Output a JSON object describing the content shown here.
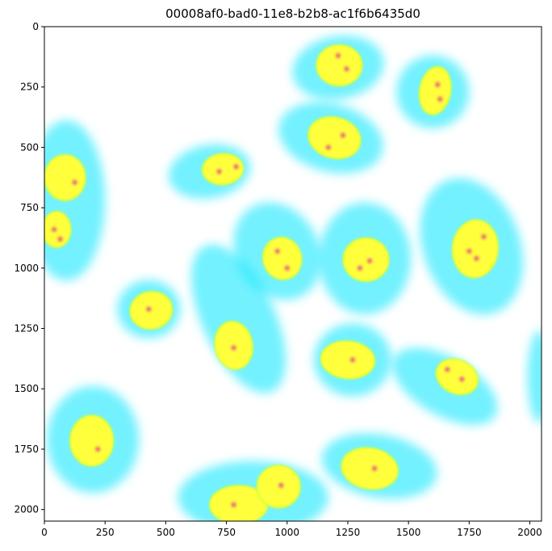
{
  "figure": {
    "title": "00008af0-bad0-11e8-b2b8-ac1f6b6435d0",
    "image_extent": {
      "x": [
        0,
        2048
      ],
      "y": [
        2048,
        0
      ]
    },
    "x_ticks": [
      "0",
      "250",
      "500",
      "750",
      "1000",
      "1250",
      "1500",
      "1750",
      "2000"
    ],
    "y_ticks": [
      "0",
      "250",
      "500",
      "750",
      "1000",
      "1250",
      "1500",
      "1750",
      "2000"
    ],
    "colors": {
      "background": "#ffffff",
      "cytoplasm": "#00e5ff",
      "nucleus": "#ffff3a",
      "nucleus_edge": "#b8ff40",
      "nucleolus": "#e0408a"
    },
    "cells": [
      {
        "cx": 1210,
        "cy": 170,
        "rx": 190,
        "ry": 130,
        "rot": -10,
        "nx": 1215,
        "ny": 160,
        "nrx": 95,
        "nry": 85,
        "nrot": 0
      },
      {
        "cx": 1600,
        "cy": 270,
        "rx": 150,
        "ry": 150,
        "rot": 20,
        "nx": 1610,
        "ny": 265,
        "nrx": 65,
        "nry": 100,
        "nrot": 10
      },
      {
        "cx": 1180,
        "cy": 460,
        "rx": 220,
        "ry": 140,
        "rot": 15,
        "nx": 1195,
        "ny": 460,
        "nrx": 110,
        "nry": 85,
        "nrot": 15
      },
      {
        "cx": 90,
        "cy": 720,
        "rx": 160,
        "ry": 330,
        "rot": 0,
        "nx": 85,
        "ny": 625,
        "nrx": 85,
        "nry": 95,
        "nrot": 0
      },
      {
        "cx": 90,
        "cy": 720,
        "rx": 1,
        "ry": 1,
        "rot": 0,
        "nx": 50,
        "ny": 840,
        "nrx": 60,
        "nry": 75,
        "nrot": 0
      },
      {
        "cx": 680,
        "cy": 600,
        "rx": 170,
        "ry": 110,
        "rot": -10,
        "nx": 735,
        "ny": 590,
        "nrx": 85,
        "nry": 65,
        "nrot": -5
      },
      {
        "cx": 960,
        "cy": 930,
        "rx": 170,
        "ry": 210,
        "rot": -30,
        "nx": 980,
        "ny": 960,
        "nrx": 80,
        "nry": 88,
        "nrot": -15
      },
      {
        "cx": 1320,
        "cy": 960,
        "rx": 190,
        "ry": 230,
        "rot": 0,
        "nx": 1325,
        "ny": 965,
        "nrx": 95,
        "nry": 90,
        "nrot": 0
      },
      {
        "cx": 1760,
        "cy": 910,
        "rx": 290,
        "ry": 200,
        "rot": 70,
        "nx": 1775,
        "ny": 920,
        "nrx": 95,
        "nry": 120,
        "nrot": 5
      },
      {
        "cx": 430,
        "cy": 1170,
        "rx": 130,
        "ry": 120,
        "rot": 0,
        "nx": 440,
        "ny": 1175,
        "nrx": 88,
        "nry": 78,
        "nrot": -10
      },
      {
        "cx": 800,
        "cy": 1210,
        "rx": 150,
        "ry": 330,
        "rot": -25,
        "nx": 780,
        "ny": 1320,
        "nrx": 78,
        "nry": 100,
        "nrot": -10
      },
      {
        "cx": 1270,
        "cy": 1380,
        "rx": 160,
        "ry": 150,
        "rot": 0,
        "nx": 1250,
        "ny": 1380,
        "nrx": 112,
        "nry": 78,
        "nrot": 5
      },
      {
        "cx": 1650,
        "cy": 1490,
        "rx": 240,
        "ry": 120,
        "rot": 30,
        "nx": 1700,
        "ny": 1450,
        "nrx": 90,
        "nry": 70,
        "nrot": 25
      },
      {
        "cx": 2040,
        "cy": 1450,
        "rx": 50,
        "ry": 190,
        "rot": 0,
        "nx": 2040,
        "ny": 1450,
        "nrx": 1,
        "nry": 1,
        "nrot": 0
      },
      {
        "cx": 200,
        "cy": 1710,
        "rx": 190,
        "ry": 220,
        "rot": 0,
        "nx": 195,
        "ny": 1715,
        "nrx": 90,
        "nry": 105,
        "nrot": 0
      },
      {
        "cx": 860,
        "cy": 1950,
        "rx": 310,
        "ry": 150,
        "rot": 0,
        "nx": 800,
        "ny": 1980,
        "nrx": 120,
        "nry": 80,
        "nrot": 0
      },
      {
        "cx": 860,
        "cy": 1950,
        "rx": 1,
        "ry": 1,
        "rot": 0,
        "nx": 965,
        "ny": 1905,
        "nrx": 90,
        "nry": 88,
        "nrot": 0
      },
      {
        "cx": 1380,
        "cy": 1820,
        "rx": 240,
        "ry": 130,
        "rot": 10,
        "nx": 1340,
        "ny": 1830,
        "nrx": 118,
        "nry": 85,
        "nrot": 10
      }
    ],
    "nucleoli": [
      {
        "x": 1245,
        "y": 175
      },
      {
        "x": 1210,
        "y": 120
      },
      {
        "x": 1620,
        "y": 240
      },
      {
        "x": 1630,
        "y": 300
      },
      {
        "x": 1230,
        "y": 450
      },
      {
        "x": 1170,
        "y": 500
      },
      {
        "x": 125,
        "y": 645
      },
      {
        "x": 40,
        "y": 840
      },
      {
        "x": 65,
        "y": 880
      },
      {
        "x": 720,
        "y": 600
      },
      {
        "x": 790,
        "y": 580
      },
      {
        "x": 1000,
        "y": 1000
      },
      {
        "x": 960,
        "y": 930
      },
      {
        "x": 1340,
        "y": 970
      },
      {
        "x": 1300,
        "y": 1000
      },
      {
        "x": 1780,
        "y": 960
      },
      {
        "x": 1810,
        "y": 870
      },
      {
        "x": 1750,
        "y": 930
      },
      {
        "x": 430,
        "y": 1170
      },
      {
        "x": 1270,
        "y": 1380
      },
      {
        "x": 1720,
        "y": 1460
      },
      {
        "x": 1660,
        "y": 1420
      },
      {
        "x": 780,
        "y": 1330
      },
      {
        "x": 220,
        "y": 1750
      },
      {
        "x": 780,
        "y": 1980
      },
      {
        "x": 975,
        "y": 1900
      },
      {
        "x": 1360,
        "y": 1830
      }
    ]
  }
}
